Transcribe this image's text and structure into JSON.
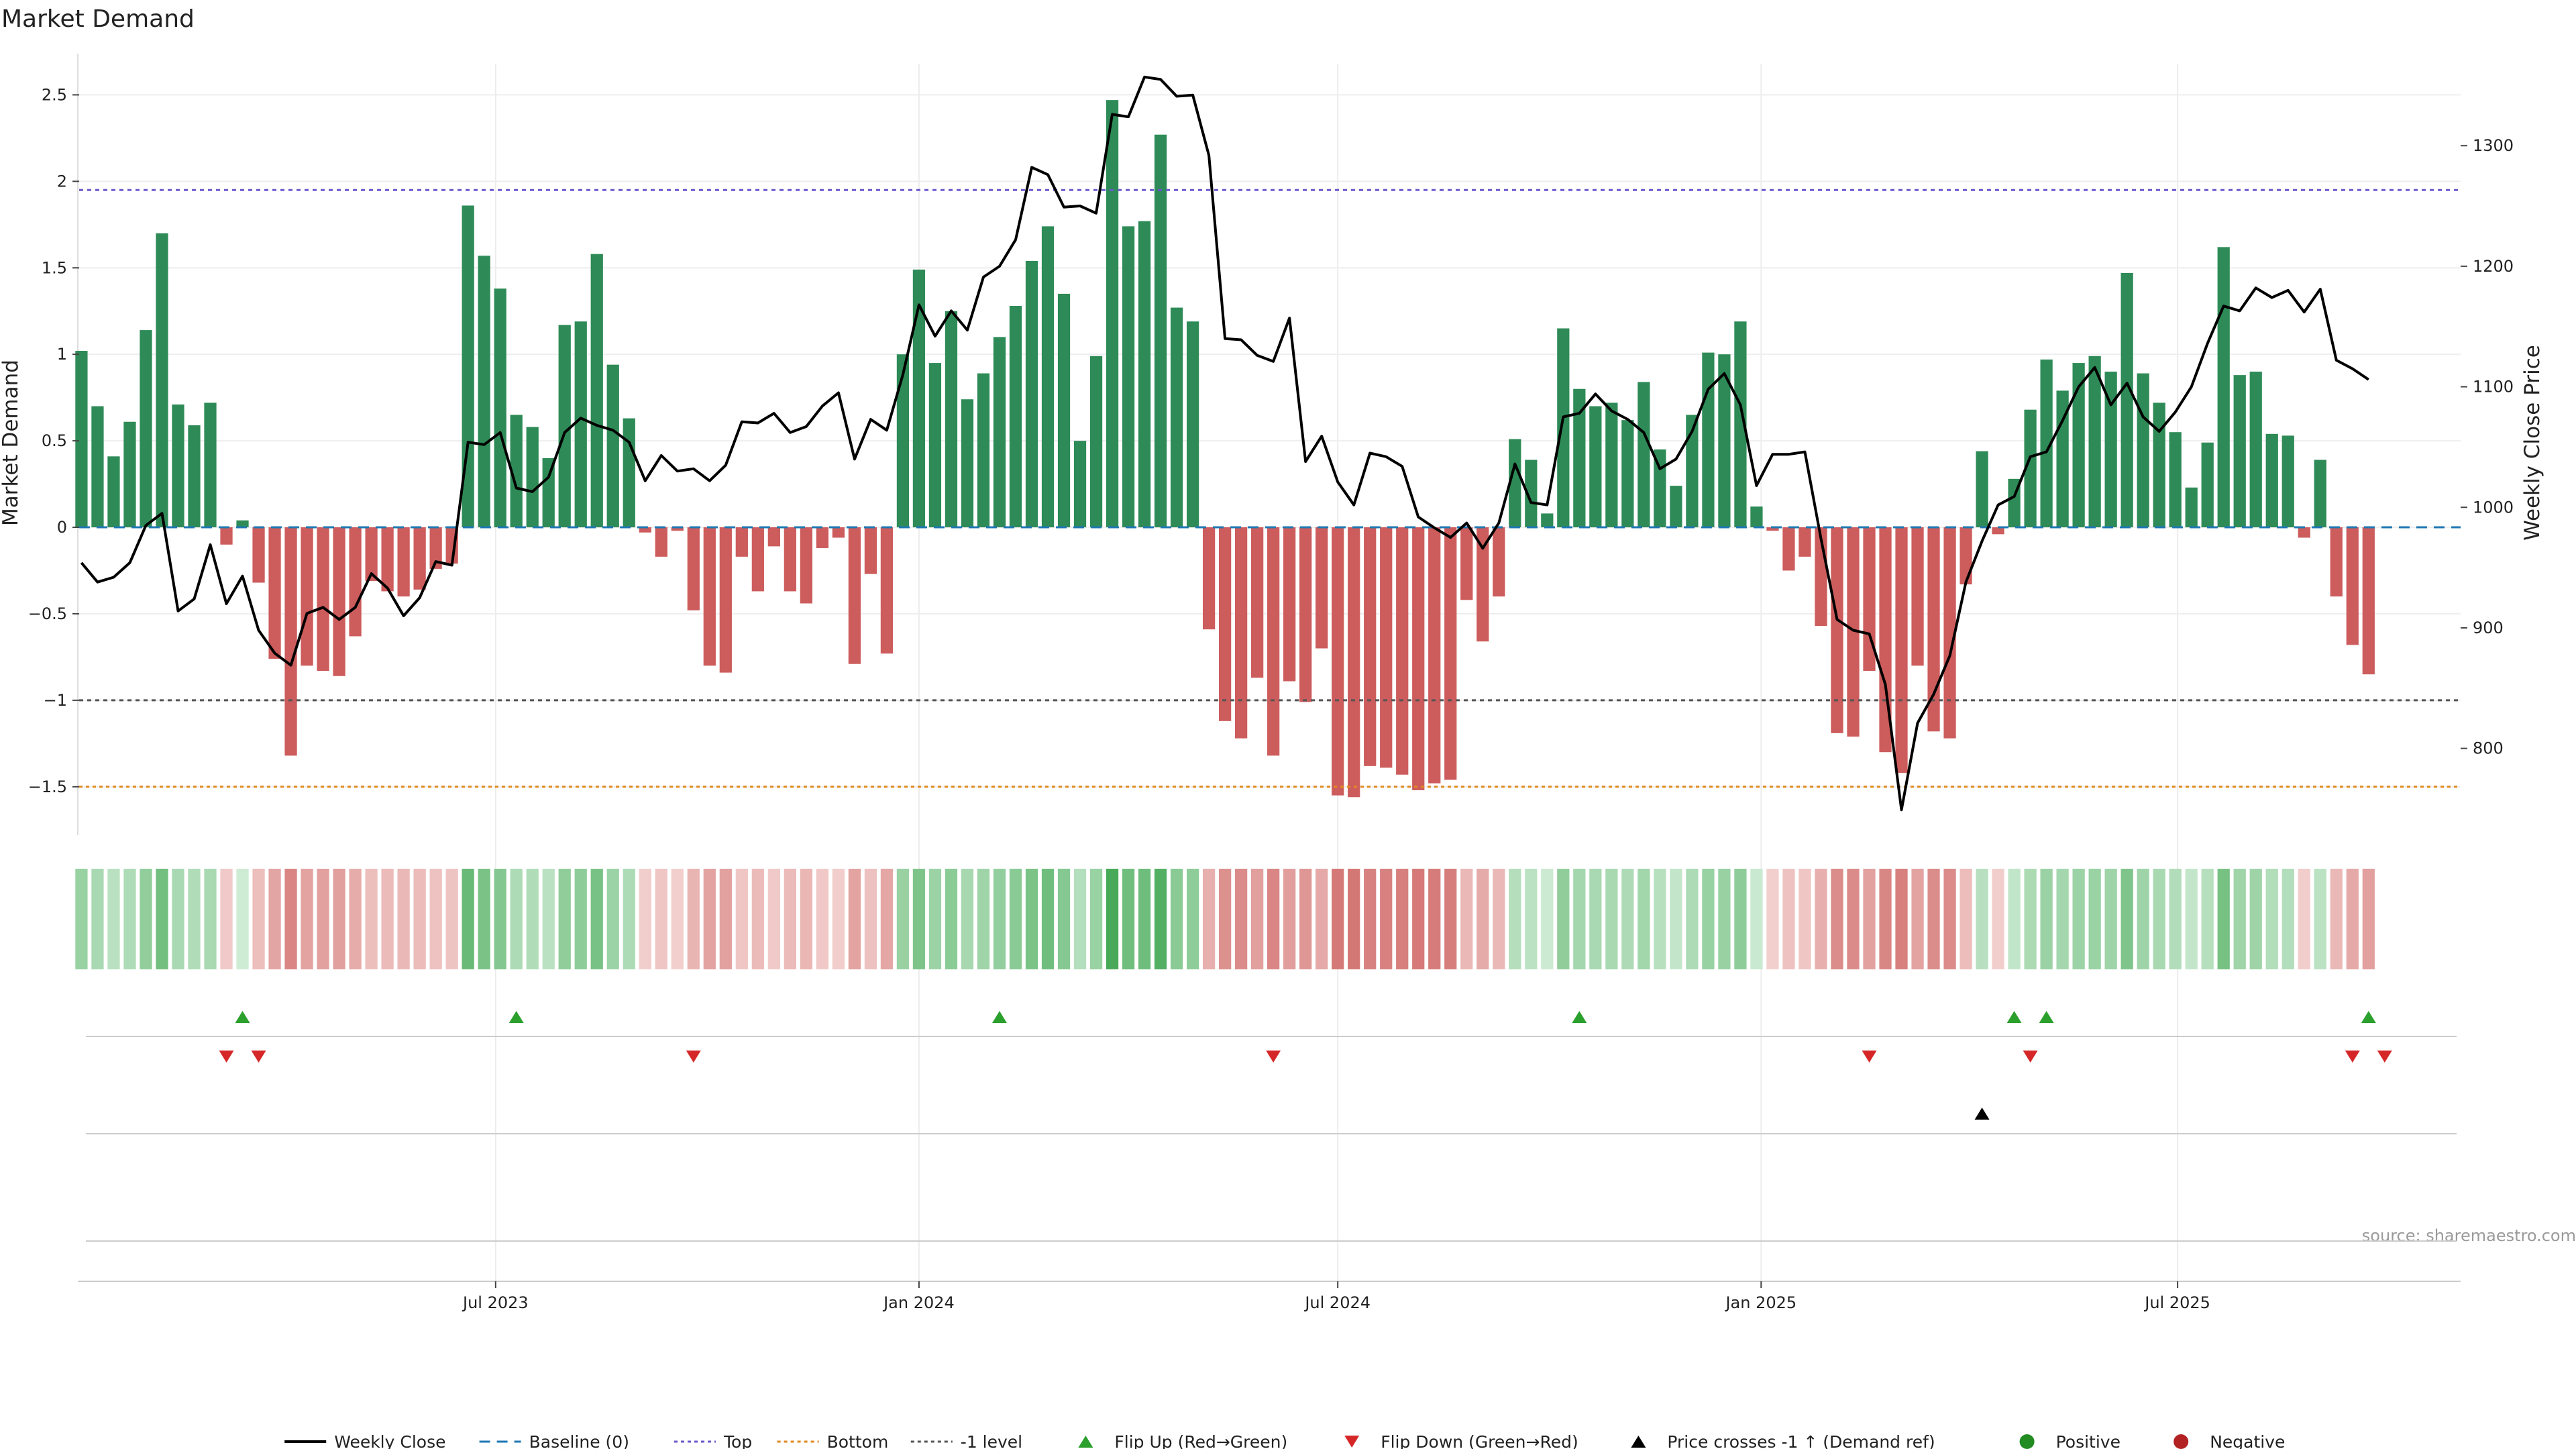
{
  "chart_data": {
    "type": "bar",
    "title": "Market Demand",
    "ylabel": "Market Demand",
    "y2label": "Weekly Close Price",
    "source": "source: sharemaestro.com",
    "ylim": [
      -1.78,
      2.68
    ],
    "y2lim": [
      728,
      1368
    ],
    "yticks": [
      -1.5,
      -1,
      -0.5,
      0,
      0.5,
      1,
      1.5,
      2,
      2.5
    ],
    "ytick_labels": [
      "−1.5",
      "−1",
      "−0.5",
      "0",
      "0.5",
      "1",
      "1.5",
      "2",
      "2.5"
    ],
    "y2ticks": [
      800,
      900,
      1000,
      1100,
      1200,
      1300
    ],
    "y2tick_labels": [
      "800",
      "900",
      "1000",
      "1100",
      "1200",
      "1300"
    ],
    "x_start": "2023-01-01",
    "x_end": "2025-11-01",
    "xticks": [
      "2023-07-01",
      "2024-01-01",
      "2024-07-01",
      "2025-01-01",
      "2025-07-01"
    ],
    "xtick_labels": [
      "Jul 2023",
      "Jan 2024",
      "Jul 2024",
      "Jan 2025",
      "Jul 2025"
    ],
    "reference_lines": {
      "top": 1.95,
      "bottom": -1.5,
      "minus_one": -1,
      "baseline": 0
    },
    "weeks_first": "2023-01-02",
    "demand": [
      1.02,
      0.7,
      0.41,
      0.61,
      1.14,
      1.7,
      0.71,
      0.59,
      0.72,
      -0.1,
      0.04,
      -0.32,
      -0.76,
      -1.32,
      -0.8,
      -0.83,
      -0.86,
      -0.63,
      -0.31,
      -0.37,
      -0.4,
      -0.36,
      -0.24,
      -0.21,
      1.86,
      1.57,
      1.38,
      0.65,
      0.58,
      0.4,
      1.17,
      1.19,
      1.58,
      0.94,
      0.63,
      -0.03,
      -0.17,
      -0.02,
      -0.48,
      -0.8,
      -0.84,
      -0.17,
      -0.37,
      -0.11,
      -0.37,
      -0.44,
      -0.12,
      -0.06,
      -0.79,
      -0.27,
      -0.73,
      1.0,
      1.49,
      0.95,
      1.25,
      0.74,
      0.89,
      1.1,
      1.28,
      1.54,
      1.74,
      1.35,
      0.5,
      0.99,
      2.47,
      1.74,
      1.77,
      2.27,
      1.27,
      1.19,
      -0.59,
      -1.12,
      -1.22,
      -0.87,
      -1.32,
      -0.89,
      -1.01,
      -0.7,
      -1.55,
      -1.56,
      -1.38,
      -1.39,
      -1.43,
      -1.52,
      -1.48,
      -1.46,
      -0.42,
      -0.66,
      -0.4,
      0.51,
      0.39,
      0.08,
      1.15,
      0.8,
      0.7,
      0.72,
      0.62,
      0.84,
      0.45,
      0.24,
      0.65,
      1.01,
      1.0,
      1.19,
      0.12,
      -0.02,
      -0.25,
      -0.17,
      -0.57,
      -1.19,
      -1.21,
      -0.83,
      -1.3,
      -1.42,
      -0.8,
      -1.18,
      -1.22,
      -0.33,
      0.44,
      -0.04,
      0.28,
      0.68,
      0.97,
      0.79,
      0.95,
      0.99,
      0.9,
      1.47,
      0.89,
      0.72,
      0.55,
      0.23,
      0.49,
      1.62,
      0.88,
      0.9,
      0.54,
      0.53,
      -0.06,
      0.39,
      -0.4,
      -0.68,
      -0.85
    ],
    "close": [
      954,
      938,
      942,
      954,
      985,
      995,
      914,
      924,
      969,
      920,
      943,
      898,
      879,
      869,
      912,
      917,
      907,
      917,
      945,
      933,
      910,
      925,
      955,
      952,
      1054,
      1052,
      1062,
      1016,
      1013,
      1025,
      1062,
      1074,
      1068,
      1064,
      1054,
      1022,
      1043,
      1030,
      1032,
      1022,
      1035,
      1071,
      1070,
      1078,
      1062,
      1067,
      1084,
      1095,
      1040,
      1073,
      1064,
      1110,
      1168,
      1142,
      1163,
      1147,
      1191,
      1200,
      1222,
      1282,
      1276,
      1249,
      1250,
      1244,
      1326,
      1324,
      1357,
      1355,
      1341,
      1342,
      1292,
      1140,
      1139,
      1126,
      1121,
      1157,
      1038,
      1059,
      1021,
      1002,
      1045,
      1042,
      1034,
      992,
      983,
      975,
      987,
      966,
      987,
      1036,
      1004,
      1002,
      1075,
      1078,
      1094,
      1080,
      1073,
      1062,
      1032,
      1040,
      1063,
      1098,
      1111,
      1085,
      1018,
      1044,
      1044,
      1046,
      974,
      907,
      898,
      895,
      853,
      749,
      821,
      845,
      877,
      938,
      972,
      1002,
      1009,
      1042,
      1046,
      1072,
      1100,
      1116,
      1085,
      1103,
      1075,
      1063,
      1079,
      1100,
      1136,
      1167,
      1163,
      1182,
      1174,
      1180,
      1162,
      1181,
      1122,
      1115,
      1106
    ],
    "regime_strip": "Weekly demand colour strip (green = positive, red = negative, shade = magnitude)",
    "flip_up": [
      "2023-03-13",
      "2023-07-10",
      "2024-02-05",
      "2024-10-14",
      "2025-04-21",
      "2025-05-05",
      "2025-09-22"
    ],
    "flip_down": [
      "2023-03-06",
      "2023-03-20",
      "2023-09-25",
      "2024-06-03",
      "2025-02-17",
      "2025-04-28",
      "2025-09-15",
      "2025-09-29"
    ],
    "price_cross_up": [
      "2025-04-07"
    ],
    "legend": [
      {
        "label": "Weekly Close",
        "kind": "line",
        "color": "#000000"
      },
      {
        "label": "Baseline (0)",
        "kind": "dash",
        "color": "#1f77b4"
      },
      {
        "label": "Top",
        "kind": "dot",
        "color": "#6a5acd"
      },
      {
        "label": "Bottom",
        "kind": "dot",
        "color": "#e08a1e"
      },
      {
        "label": "-1 level",
        "kind": "dot",
        "color": "#555555"
      },
      {
        "label": "Flip Up (Red→Green)",
        "kind": "tri-up",
        "color": "#2ca02c"
      },
      {
        "label": "Flip Down (Green→Red)",
        "kind": "tri-down",
        "color": "#d62728"
      },
      {
        "label": "Price crosses -1 ↑ (Demand ref)",
        "kind": "tri-up",
        "color": "#000000"
      },
      {
        "label": "Positive",
        "kind": "circle",
        "color": "#228b22"
      },
      {
        "label": "Negative",
        "kind": "circle",
        "color": "#b22222"
      }
    ],
    "colors": {
      "positive": "#2e8b57",
      "negative": "#cd5c5c",
      "close": "#000000"
    }
  }
}
